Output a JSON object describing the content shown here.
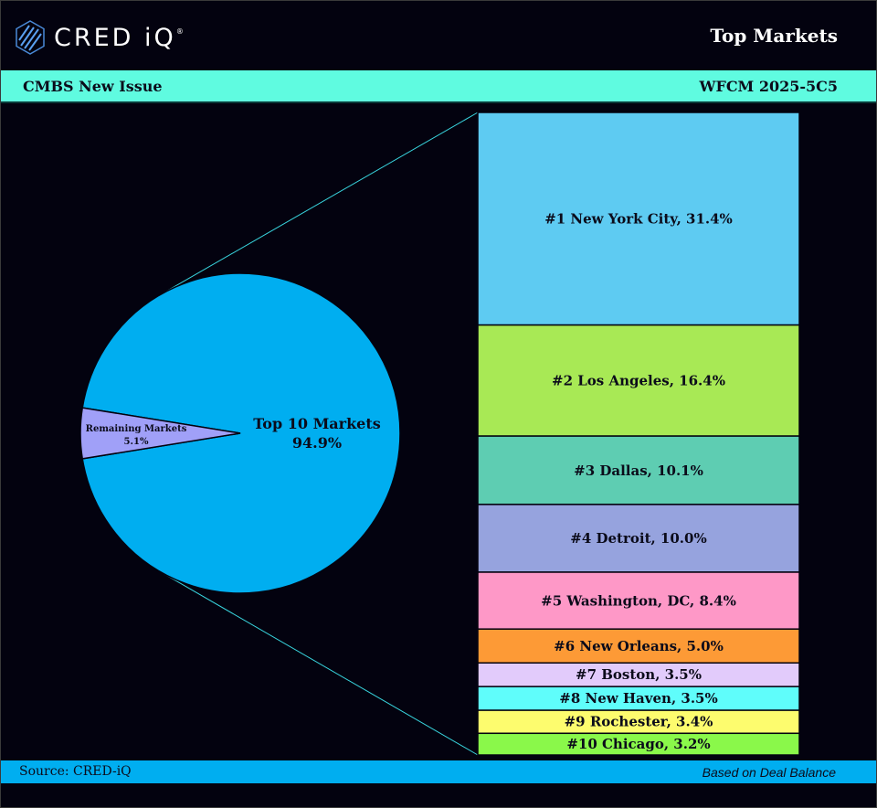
{
  "header": {
    "brand": "CRED iQ",
    "brand_mark": "®",
    "title": "Top Markets"
  },
  "subheader": {
    "left": "CMBS New Issue",
    "right": "WFCM 2025-5C5"
  },
  "footer": {
    "source": "Source:  CRED-iQ",
    "note": "Based on Deal Balance"
  },
  "colors": {
    "background": "#03020f",
    "subheader_bar": "#5ffbe0",
    "footer_bar": "#00aef0",
    "connector_lines": "#39d6e0"
  },
  "chart_data": {
    "type": "bar-of-pie",
    "pie": [
      {
        "name": "Top 10 Markets",
        "value": 94.9,
        "label": "94.9%",
        "color": "#00aef0"
      },
      {
        "name": "Remaining Markets",
        "value": 5.1,
        "label": "5.1%",
        "color": "#a0a0f8"
      }
    ],
    "stacked_bar": [
      {
        "label": "#1 New York City, 31.4%",
        "value": 31.4,
        "color": "#5ecbf2"
      },
      {
        "label": "#2 Los Angeles, 16.4%",
        "value": 16.4,
        "color": "#a8e955"
      },
      {
        "label": "#3 Dallas, 10.1%",
        "value": 10.1,
        "color": "#5ecdb2"
      },
      {
        "label": "#4 Detroit, 10.0%",
        "value": 10.0,
        "color": "#96a3de"
      },
      {
        "label": "#5 Washington, DC, 8.4%",
        "value": 8.4,
        "color": "#fe98c7"
      },
      {
        "label": "#6 New Orleans, 5.0%",
        "value": 5.0,
        "color": "#fd9a36"
      },
      {
        "label": "#7 Boston, 3.5%",
        "value": 3.5,
        "color": "#e2cbfb"
      },
      {
        "label": "#8 New Haven, 3.5%",
        "value": 3.5,
        "color": "#5ffdfb"
      },
      {
        "label": "#9 Rochester, 3.4%",
        "value": 3.4,
        "color": "#fdfc6e"
      },
      {
        "label": "#10 Chicago, 3.2%",
        "value": 3.2,
        "color": "#8af84a"
      }
    ]
  }
}
